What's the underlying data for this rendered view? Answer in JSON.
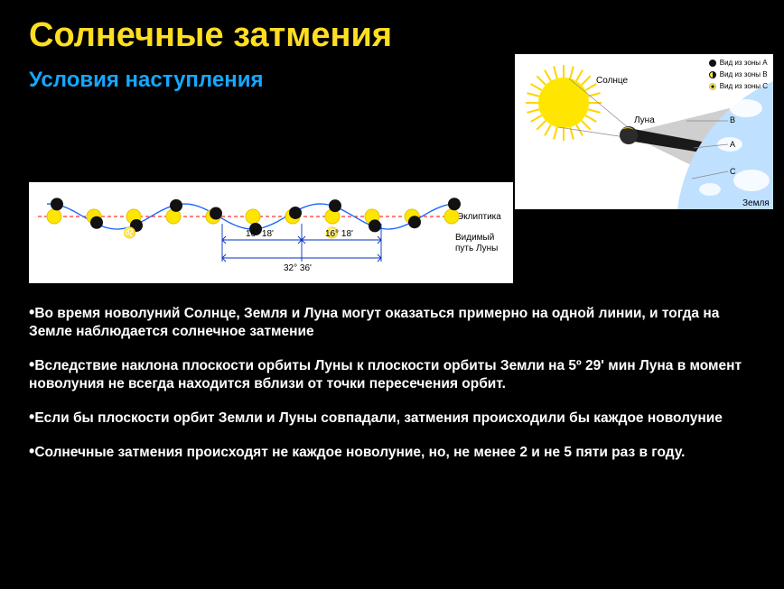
{
  "title": "Солнечные затмения",
  "subtitle": "Условия наступления",
  "ecliptic_diagram": {
    "background": "#ffffff",
    "label_ecliptic": "Эклиптика",
    "label_moonpath": "Видимый путь Луны",
    "angle_left": "16° 18'",
    "angle_right": "16° 18'",
    "angle_bottom": "32° 36'",
    "symbol_leo": "♌",
    "sun_color": "#ffe600",
    "sun_edge": "#e6c200",
    "moon_color": "#111111",
    "ecliptic_line_color": "#ff0000",
    "moonpath_line_color": "#1060ff",
    "dim_line_color": "#0030c0",
    "positions": {
      "yCenter": 38,
      "amp": 14,
      "count": 11,
      "xStart": 28,
      "xStep": 44
    }
  },
  "sun_diagram": {
    "background": "#ffffff",
    "label_sun": "Солнце",
    "label_moon": "Луна",
    "label_earth": "Земля",
    "zone_labels": {
      "A": "A",
      "B": "B",
      "C": "C"
    },
    "legend": [
      {
        "text": "Вид из зоны A",
        "fill": "#111111",
        "border": "#111111"
      },
      {
        "text": "Вид из зоны B",
        "fill": "#ffea3a",
        "border": "#111111",
        "half": true
      },
      {
        "text": "Вид из зоны C",
        "fill": "#ffea3a",
        "border": "#bbbbbb",
        "inner": "#111111"
      }
    ],
    "sun_color": "#ffe600",
    "sun_ray_color": "#ffd400",
    "moon_fill": "#2b2b2b",
    "moon_highlight": "#ffe600",
    "earth_fill": "#bfe0ff",
    "earth_land": "#ffffff",
    "penumbra_fill": "#cfcfcf",
    "umbra_fill": "#1a1a1a",
    "guide_line": "#888888"
  },
  "bullets": [
    "Во время новолуний Солнце, Земля и Луна  могут оказаться  примерно  на одной линии, и тогда на Земле  наблюдается  солнечное  затмение",
    "Вследствие наклона плоскости орбиты  Луны  к плоскости  орбиты  Земли на 5º 29' мин Луна  в момент новолуния не всегда находится вблизи от точки пересечения  орбит.",
    "Если бы плоскости орбит Земли и Луны совпадали, затмения происходили бы каждое новолуние",
    "Солнечные затмения происходят не каждое новолуние, но,  не менее  2  и  не  5   пяти раз в году."
  ],
  "colors": {
    "page_bg": "#000000",
    "title": "#ffde22",
    "subtitle": "#14a8ff",
    "text": "#ffffff"
  },
  "fontsizes": {
    "title": 38,
    "subtitle": 24,
    "body": 15.5
  }
}
